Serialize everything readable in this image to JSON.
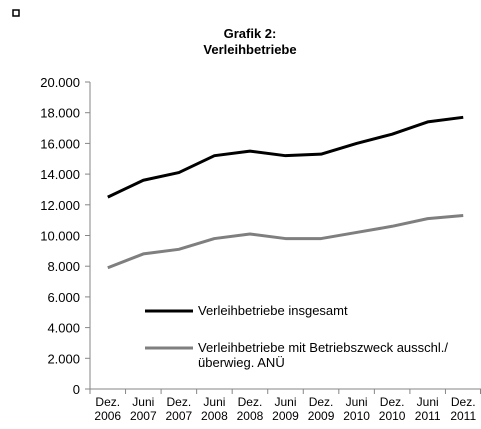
{
  "chart_data": {
    "type": "line",
    "title": "Grafik 2:",
    "subtitle": "Verleihbetriebe",
    "categories": [
      [
        "Dez.",
        "2006"
      ],
      [
        "Juni",
        "2007"
      ],
      [
        "Dez.",
        "2007"
      ],
      [
        "Juni",
        "2008"
      ],
      [
        "Dez.",
        "2008"
      ],
      [
        "Juni",
        "2009"
      ],
      [
        "Dez.",
        "2009"
      ],
      [
        "Juni",
        "2010"
      ],
      [
        "Dez.",
        "2010"
      ],
      [
        "Juni",
        "2011"
      ],
      [
        "Dez.",
        "2011"
      ]
    ],
    "series": [
      {
        "name": "Verleihbetriebe insgesamt",
        "color": "#000000",
        "values": [
          12500,
          13600,
          14100,
          15200,
          15500,
          15200,
          15300,
          16000,
          16600,
          17400,
          17700
        ]
      },
      {
        "name": "Verleihbetriebe mit Betriebszweck ausschl./überwieg. ANÜ",
        "color": "#7f7f7f",
        "values": [
          7900,
          8800,
          9100,
          9800,
          10100,
          9800,
          9800,
          10200,
          10600,
          11100,
          11300
        ]
      }
    ],
    "ylim": [
      0,
      20000
    ],
    "yticks": [
      {
        "value": 0,
        "label": "0"
      },
      {
        "value": 2000,
        "label": "2.000"
      },
      {
        "value": 4000,
        "label": "4.000"
      },
      {
        "value": 6000,
        "label": "6.000"
      },
      {
        "value": 8000,
        "label": "8.000"
      },
      {
        "value": 10000,
        "label": "10.000"
      },
      {
        "value": 12000,
        "label": "12.000"
      },
      {
        "value": 14000,
        "label": "14.000"
      },
      {
        "value": 16000,
        "label": "16.000"
      },
      {
        "value": 18000,
        "label": "18.000"
      },
      {
        "value": 20000,
        "label": "20.000"
      }
    ],
    "grid": false
  }
}
